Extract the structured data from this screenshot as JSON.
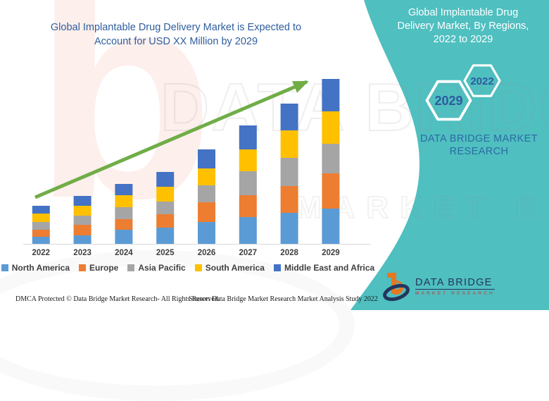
{
  "colors": {
    "teal_panel": "#4FBFC0",
    "title_blue": "#2E5E9E",
    "arrow_green": "#70AD47",
    "hex_label_blue": "#2D5C9E",
    "brand_text_blue": "#2D6AA3",
    "axis_line": "#D8D8D8",
    "legend_text": "#3F3F3F",
    "logo_navy": "#24365E",
    "logo_orange": "#E87722",
    "logo_red": "#C13A31"
  },
  "left": {
    "title_line1": "Global Implantable Drug Delivery Market is Expected to",
    "title_line2": "Account for USD XX Million by 2029"
  },
  "right_panel": {
    "title_line1": "Global Implantable Drug",
    "title_line2": "Delivery Market, By Regions,",
    "title_line3": "2022 to 2029",
    "hex_small_label": "2022",
    "hex_large_label": "2029",
    "brand_line1": "DATA BRIDGE MARKET",
    "brand_line2": "RESEARCH"
  },
  "footer": {
    "left_text": "DMCA Protected © Data Bridge Market Research- All Rights Reserved.",
    "right_text": "Source: Data Bridge Market Research Market Analysis Study 2022"
  },
  "logo": {
    "name": "DATA BRIDGE",
    "subtitle": "MARKET RESEARCH"
  },
  "watermark": {
    "brand": "DATA BRIDGE",
    "sub": "MARKET RESEARCH",
    "letter": "b"
  },
  "chart_data": {
    "type": "bar",
    "stacked": true,
    "title": "Global Implantable Drug Delivery Market is Expected to Account for USD XX Million by 2029",
    "xlabel": "",
    "ylabel": "",
    "value_axis": "not shown (relative units estimated from bar heights)",
    "ylim": [
      0,
      250
    ],
    "gridlines": false,
    "legend_position": "bottom",
    "trend_arrow": true,
    "categories": [
      "2022",
      "2023",
      "2024",
      "2025",
      "2026",
      "2027",
      "2028",
      "2029"
    ],
    "series": [
      {
        "name": "North America",
        "color": "#5B9BD5",
        "values": [
          10,
          12,
          20,
          23,
          31,
          38,
          44,
          50
        ]
      },
      {
        "name": "Europe",
        "color": "#ED7D31",
        "values": [
          10,
          15,
          15,
          19,
          28,
          31,
          38,
          50
        ]
      },
      {
        "name": "Asia Pacific",
        "color": "#A5A5A5",
        "values": [
          11,
          13,
          17,
          18,
          24,
          34,
          40,
          42
        ]
      },
      {
        "name": "South America",
        "color": "#FFC000",
        "values": [
          12,
          14,
          17,
          21,
          24,
          31,
          39,
          46
        ]
      },
      {
        "name": "Middle East and Africa",
        "color": "#4472C4",
        "values": [
          11,
          14,
          16,
          21,
          27,
          34,
          38,
          46
        ]
      }
    ],
    "totals": [
      54,
      68,
      85,
      102,
      134,
      168,
      199,
      234
    ]
  }
}
